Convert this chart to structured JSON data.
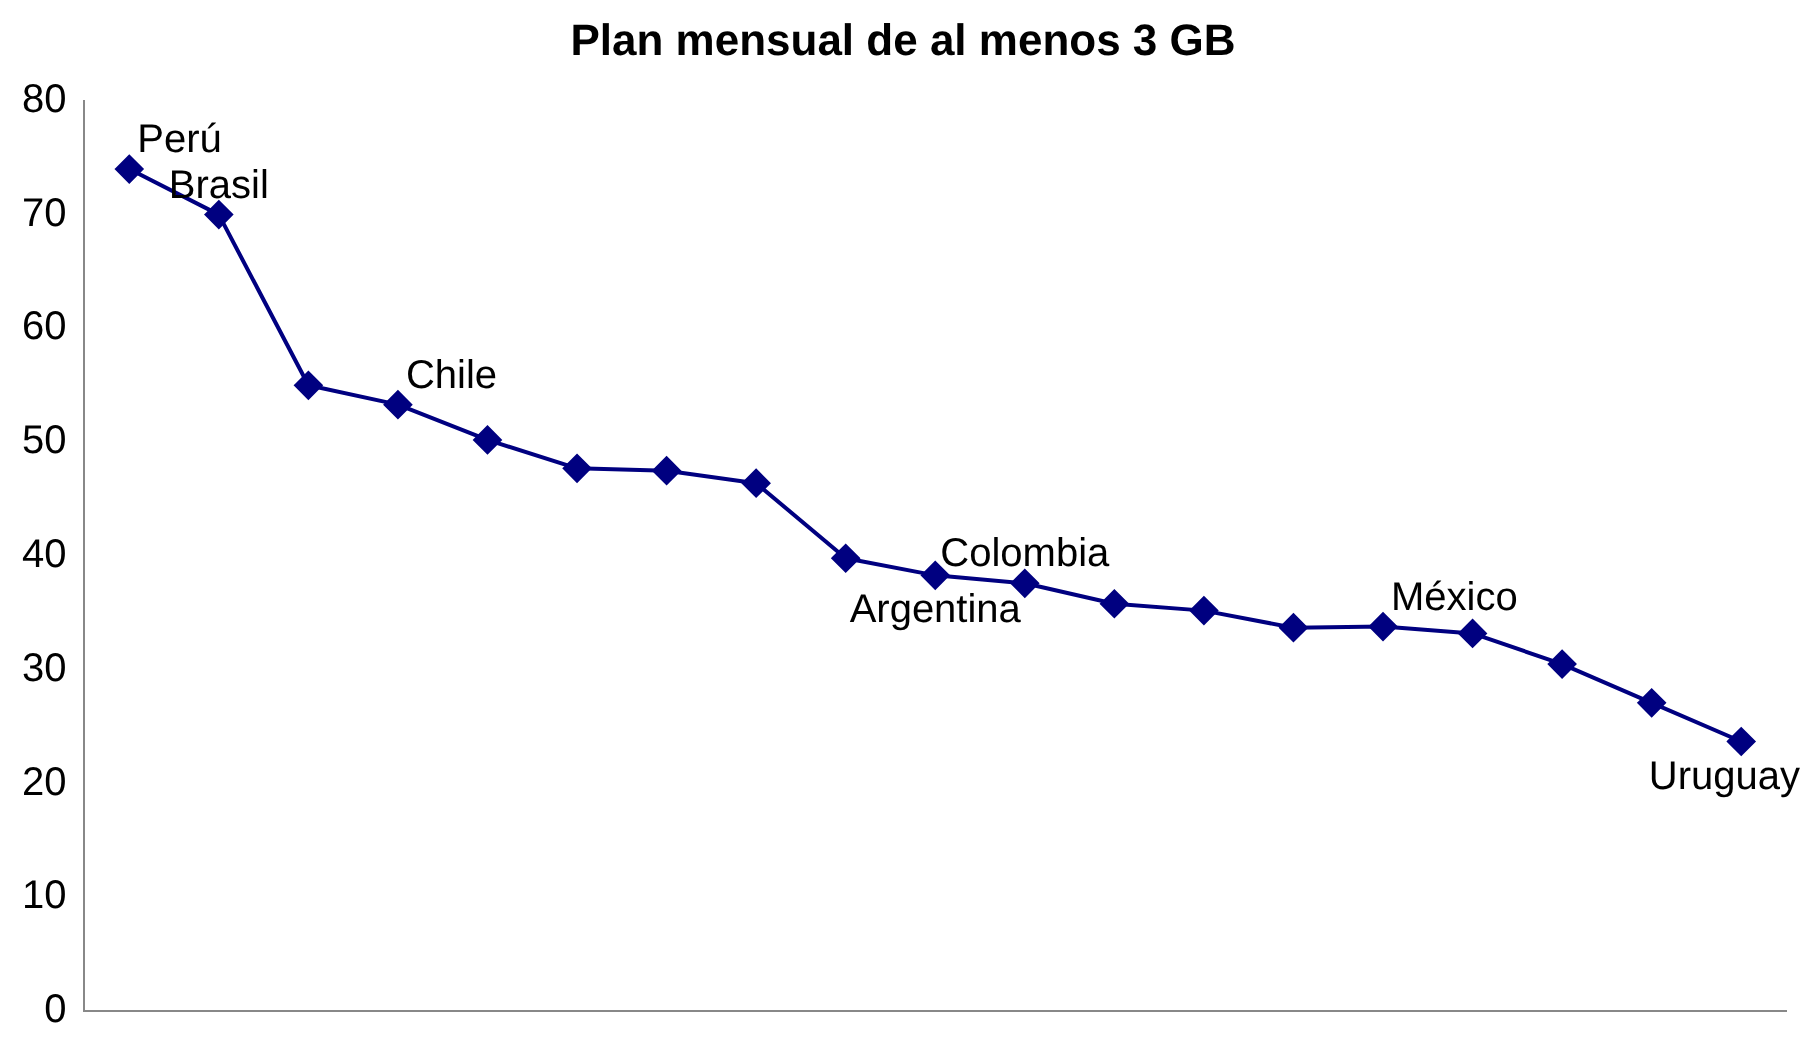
{
  "chart_data": {
    "type": "line",
    "title": "Plan mensual de al menos 3 GB",
    "categories": [
      null,
      null,
      null,
      null,
      null,
      null,
      null,
      null,
      null,
      null,
      null,
      null,
      null,
      null,
      null,
      null,
      null,
      null,
      null
    ],
    "series": [
      {
        "color": "#000080",
        "values": [
          74,
          70,
          55,
          53.3,
          50.2,
          47.7,
          47.5,
          46.4,
          39.8,
          38.3,
          37.6,
          35.8,
          35.2,
          33.7,
          33.8,
          33.2,
          30.5,
          27.1,
          23.7
        ],
        "value_labels": [
          "Perú",
          "Brasil",
          null,
          "Chile",
          null,
          null,
          null,
          null,
          null,
          "Argentina",
          "Colombia",
          null,
          null,
          null,
          "México",
          null,
          null,
          null,
          "Uruguay"
        ]
      }
    ],
    "ylim": [
      0,
      80
    ],
    "yticks": [
      0,
      10,
      20,
      30,
      40,
      50,
      60,
      70,
      80
    ],
    "grid": false,
    "legend": false,
    "marker": "diamond",
    "line_style": "solid"
  }
}
